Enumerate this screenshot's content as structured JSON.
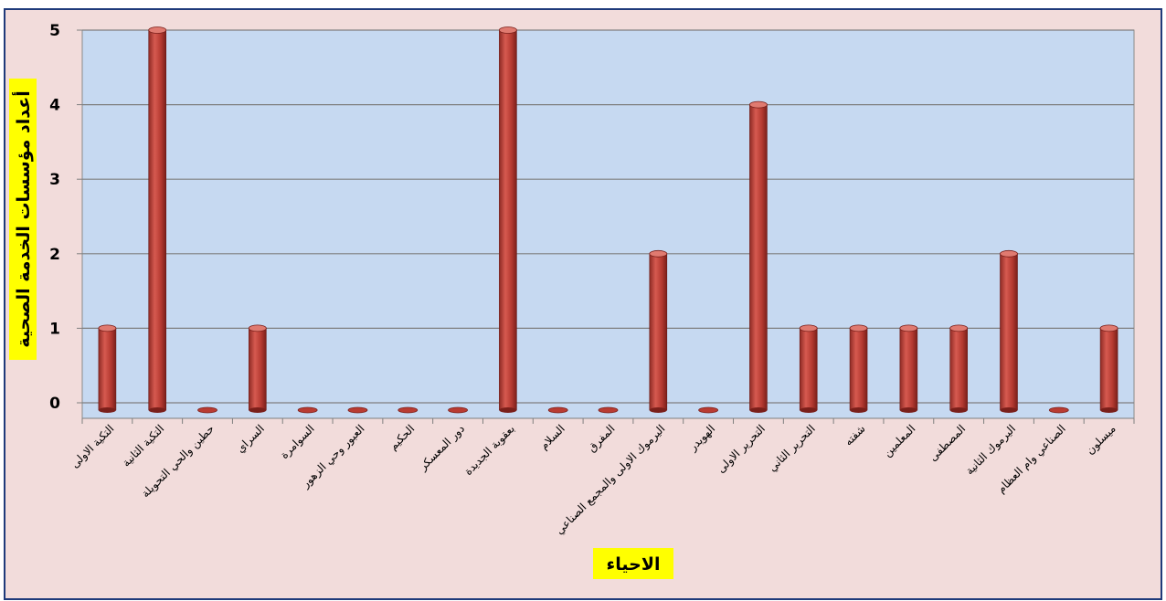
{
  "chart_data": {
    "type": "bar",
    "title": "",
    "xlabel": "الاحياء",
    "ylabel": "أعداد مؤسسات الخدمة الصحية",
    "ylim": [
      0,
      5
    ],
    "yticks": [
      "0",
      "1",
      "2",
      "3",
      "4",
      "5"
    ],
    "grid": true,
    "legend": "none",
    "categories": [
      "التكية الاولى",
      "التكية الثانية",
      "حطين والحي التحويلة",
      "السراي",
      "السوامرة",
      "العبور وحي الزهور",
      "الحكيم",
      "دور المعسكر",
      "بعقوبة الجديدة",
      "السلام",
      "المفرق",
      "اليرموك الاولى والمجمع الصناعي",
      "الهويدر",
      "التحرير الاولى",
      "التحرير الثاني",
      "شفته",
      "المعلمين",
      "المصطفى",
      "اليرموك الثانية",
      "الصناعي وام العظام",
      "ميسلون"
    ],
    "values": [
      1,
      5,
      0,
      1,
      0,
      0,
      0,
      0,
      5,
      0,
      0,
      2,
      0,
      4,
      1,
      1,
      1,
      1,
      2,
      0,
      1
    ],
    "colors": {
      "outer_bg": "#f2dcdb",
      "plot_bg": "#c6d9f1",
      "bar_fill": "#b93b32",
      "bar_dark": "#7a1f1a",
      "bar_light": "#e07a70",
      "label_bg": "#ffff00",
      "axis": "#7f7f7f",
      "frame": "#1f3a7a"
    }
  }
}
